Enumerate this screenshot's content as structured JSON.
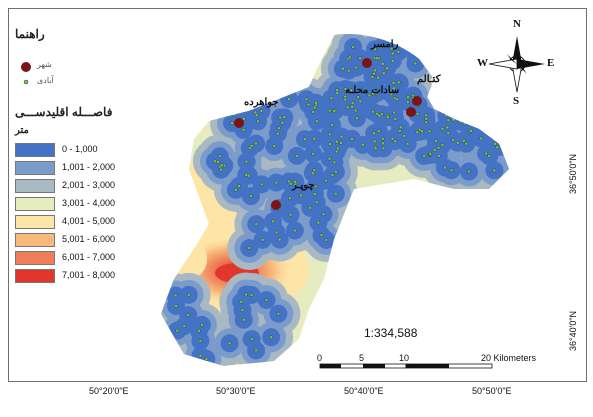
{
  "legend": {
    "title": "راهنما",
    "city_label": "شهر",
    "village_label": "آبادی",
    "distance_title": "فاصـــله اقلیدســـی",
    "unit": "متر",
    "classes": [
      {
        "label": "0 - 1,000",
        "color": "#4472c4"
      },
      {
        "label": "1,001 - 2,000",
        "color": "#7b9ccb"
      },
      {
        "label": "2,001 - 3,000",
        "color": "#a9b9c4"
      },
      {
        "label": "3,001 - 4,000",
        "color": "#e6ecbf"
      },
      {
        "label": "4,001 - 5,000",
        "color": "#fde5a8"
      },
      {
        "label": "5,001 - 6,000",
        "color": "#f8b97a"
      },
      {
        "label": "6,001 - 7,000",
        "color": "#ee7e58"
      },
      {
        "label": "7,001 - 8,000",
        "color": "#e0362c"
      }
    ]
  },
  "places": {
    "ramsar": "رامسر",
    "katalom": "کتـالم",
    "sadat_mahalle": "سادات محلـه",
    "javaherdeh": "جواهرده",
    "chupar": "چوپـر"
  },
  "compass": {
    "n": "N",
    "s": "S",
    "e": "E",
    "w": "W"
  },
  "scale": {
    "ratio": "1:334,588",
    "ticks": [
      "0",
      "5",
      "10",
      "20 Kilometers"
    ]
  },
  "coords": {
    "x_labels": [
      "50°20'0\"E",
      "50°30'0\"E",
      "50°40'0\"E",
      "50°50'0\"E"
    ],
    "y_labels": [
      "36°50'0\"N",
      "36°40'0\"N"
    ]
  },
  "colors": {
    "city_marker": "#7a1515",
    "village_marker": "#7fc241",
    "background": "#ffffff"
  }
}
